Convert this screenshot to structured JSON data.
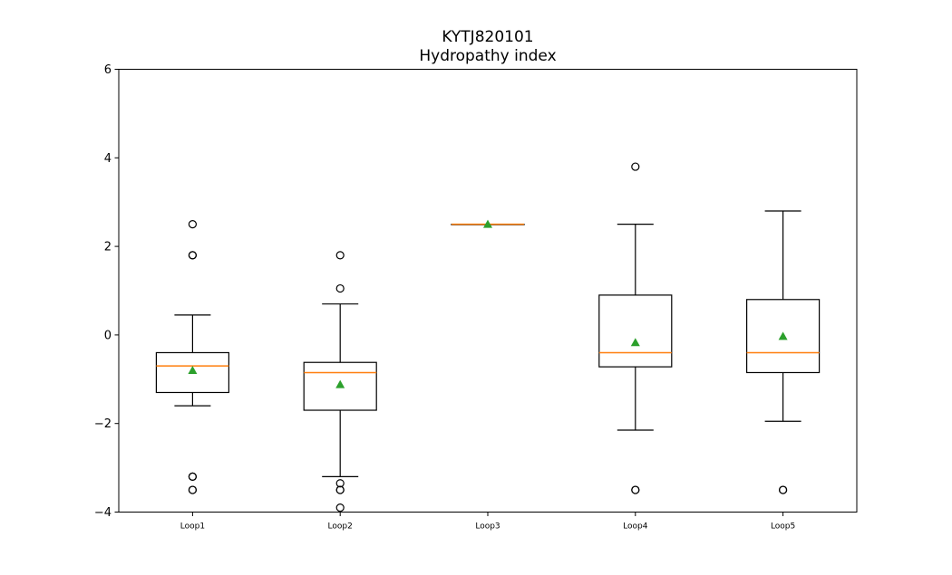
{
  "chart_data": {
    "type": "box",
    "title": "KYTJ820101",
    "subtitle": "Hydropathy index",
    "xlabel": "",
    "ylabel": "",
    "ylim": [
      -4,
      6
    ],
    "yticks": [
      -4,
      -2,
      0,
      2,
      4,
      6
    ],
    "yticklabels": [
      "−4",
      "−2",
      "0",
      "2",
      "4",
      "6"
    ],
    "grid": false,
    "categories": [
      "Loop1",
      "Loop2",
      "Loop3",
      "Loop4",
      "Loop5"
    ],
    "boxes": [
      {
        "label": "Loop1",
        "whislo": -1.6,
        "q1": -1.3,
        "med": -0.7,
        "q3": -0.4,
        "whishi": 0.45,
        "mean": -0.8,
        "fliers": [
          2.5,
          1.8,
          1.8,
          -3.2,
          -3.2,
          -3.5,
          -3.5
        ]
      },
      {
        "label": "Loop2",
        "whislo": -3.2,
        "q1": -1.7,
        "med": -0.85,
        "q3": -0.62,
        "whishi": 0.7,
        "mean": -1.12,
        "fliers": [
          1.8,
          1.05,
          -3.35,
          -3.5,
          -3.5,
          -3.9
        ]
      },
      {
        "label": "Loop3",
        "whislo": 2.5,
        "q1": 2.5,
        "med": 2.5,
        "q3": 2.5,
        "whishi": 2.5,
        "mean": 2.5,
        "fliers": []
      },
      {
        "label": "Loop4",
        "whislo": -2.15,
        "q1": -0.72,
        "med": -0.4,
        "q3": 0.9,
        "whishi": 2.5,
        "mean": -0.17,
        "fliers": [
          3.8,
          -3.5,
          -3.5
        ]
      },
      {
        "label": "Loop5",
        "whislo": -1.95,
        "q1": -0.85,
        "med": -0.4,
        "q3": 0.8,
        "whishi": 2.8,
        "mean": -0.03,
        "fliers": [
          -3.5,
          -3.5
        ]
      }
    ],
    "colors": {
      "box": "#000000",
      "median": "#ff7f0e",
      "mean": "#2ca02c",
      "flier": "#000000"
    }
  }
}
